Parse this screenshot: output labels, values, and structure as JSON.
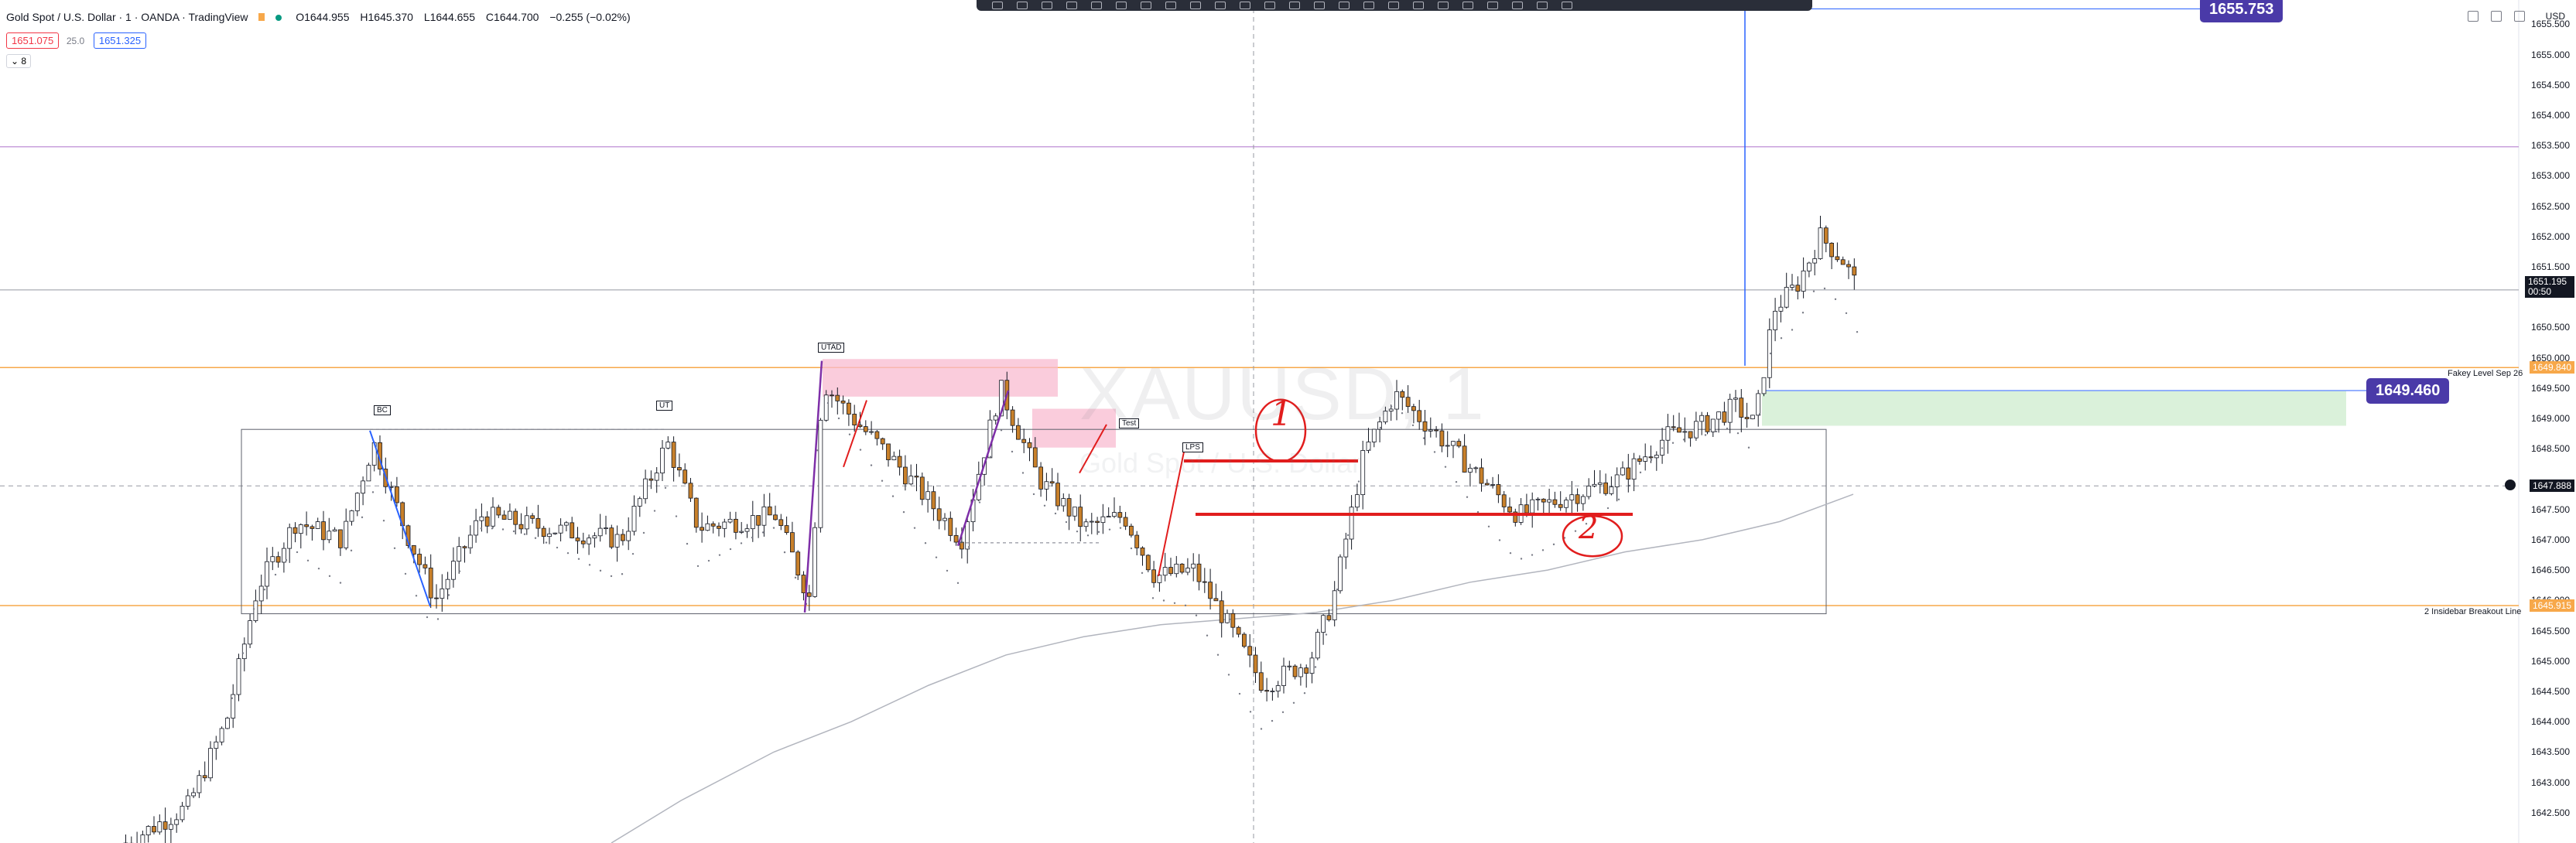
{
  "symbol": {
    "title": "Gold Spot / U.S. Dollar · 1 · OANDA · TradingView",
    "open_label": "O",
    "open": "1644.955",
    "high_label": "H",
    "high": "1645.370",
    "low_label": "L",
    "low": "1644.655",
    "close_label": "C",
    "close": "1644.700",
    "change": "−0.255 (−0.02%)"
  },
  "bidask": {
    "sell": "1651.075",
    "spread": "25.0",
    "buy": "1651.325"
  },
  "indicator_toggle": "8",
  "watermark": {
    "ticker": "XAUUSD, 1",
    "name": "Gold Spot / U.S. Dollar"
  },
  "price_axis": {
    "currency": "USD",
    "ticks": [
      "1655.500",
      "1655.000",
      "1654.500",
      "1654.000",
      "1653.500",
      "1653.000",
      "1652.500",
      "1652.000",
      "1651.500",
      "1650.500",
      "1650.000",
      "1649.500",
      "1649.000",
      "1648.500",
      "1647.500",
      "1647.000",
      "1646.500",
      "1646.000",
      "1645.500",
      "1645.000",
      "1644.500",
      "1644.000",
      "1643.500",
      "1643.000",
      "1642.500",
      "1642.000"
    ],
    "ylim": [
      1642.0,
      1655.9
    ]
  },
  "price_tags": {
    "current_price": "1651.195",
    "countdown": "00:50",
    "fakey_price": "1649.840",
    "crosshair_price": "1647.888",
    "breakout_price": "1645.915"
  },
  "annotations": {
    "callout_top": "1655.753",
    "callout_mid": "1649.460",
    "fakey_line": "Fakey Level Sep 26",
    "breakout_line": "2 Insidebar Breakout Line",
    "tag_bc": "BC",
    "tag_ut": "UT",
    "tag_utad": "UTAD",
    "tag_test": "Test",
    "tag_lps": "LPS",
    "mark_1": "1",
    "mark_2": "2"
  },
  "colors": {
    "bull": "#131722",
    "bear": "#c8802a",
    "sell_box": "#f23645",
    "buy_box": "#2962ff",
    "pink_zone": "#f8bbd0",
    "green_zone": "#d6efd6",
    "callout": "#4a3aa8",
    "orange_line": "#f7a84a",
    "red_line": "#e11d1d",
    "purple_line": "#7e2fa8",
    "blue_line": "#2962ff",
    "ma": "#b2b5be"
  },
  "icons": [
    "toolbar-drawing-icons",
    "collapse-arrow-icon",
    "settings-icon"
  ]
}
